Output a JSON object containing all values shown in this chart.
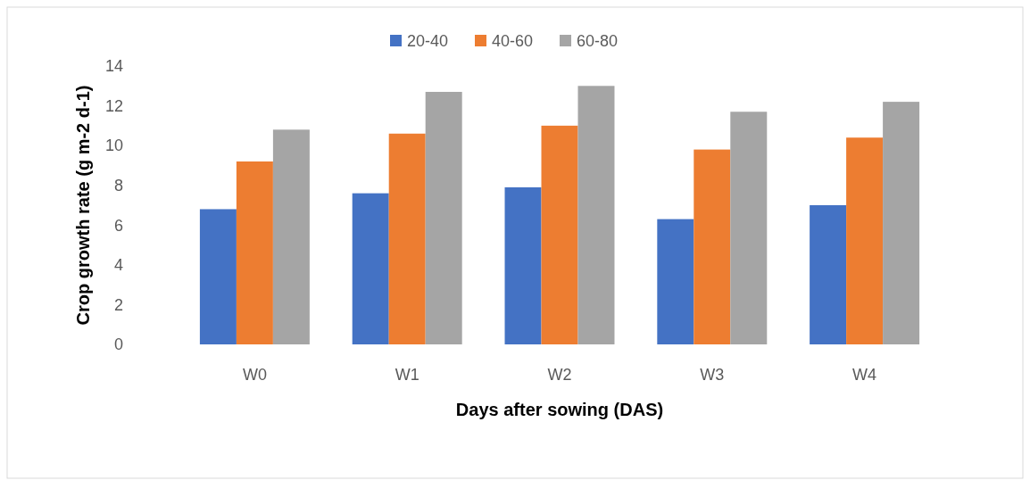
{
  "chart_data": {
    "type": "bar",
    "xlabel": "Days after sowing (DAS)",
    "ylabel": "Crop growth rate (g m-2 d-1)",
    "categories": [
      "W0",
      "W1",
      "W2",
      "W3",
      "W4"
    ],
    "series": [
      {
        "name": "20-40",
        "color": "#4472c4",
        "values": [
          6.8,
          7.6,
          7.9,
          6.3,
          7.0
        ]
      },
      {
        "name": "40-60",
        "color": "#ed7d31",
        "values": [
          9.2,
          10.6,
          11.0,
          9.8,
          10.4
        ]
      },
      {
        "name": "60-80",
        "color": "#a5a5a5",
        "values": [
          10.8,
          12.7,
          13.0,
          11.7,
          12.2
        ]
      }
    ],
    "ylim": [
      0,
      14
    ],
    "yticks": [
      0,
      2,
      4,
      6,
      8,
      10,
      12,
      14
    ],
    "grid": false,
    "legend": "top"
  }
}
